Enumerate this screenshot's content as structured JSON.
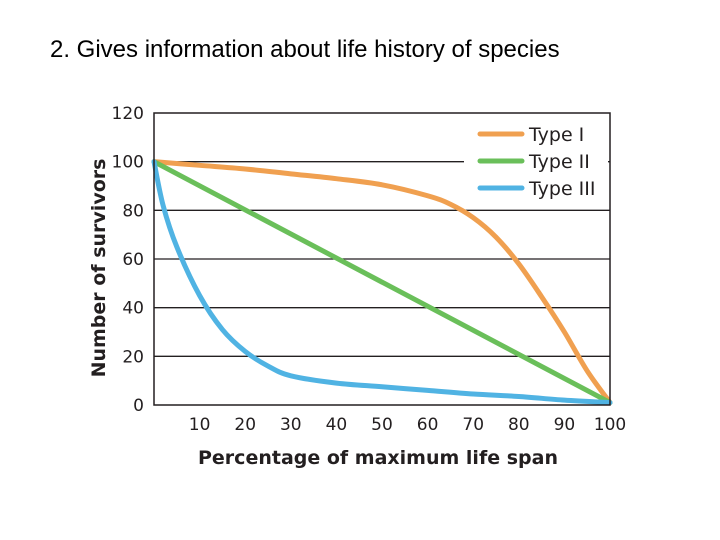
{
  "slide": {
    "title": "2. Gives information about life history of species"
  },
  "colors": {
    "type1": "#f0a050",
    "type2": "#6abf5a",
    "type3": "#50b3e3",
    "grid": "#231f20",
    "frame": "#231f20"
  },
  "chart_data": {
    "type": "line",
    "title": "",
    "xlabel": "Percentage of maximum life span",
    "ylabel": "Number of survivors",
    "xlim": [
      0,
      100
    ],
    "ylim": [
      0,
      120
    ],
    "xticks": [
      10,
      20,
      30,
      40,
      50,
      60,
      70,
      80,
      90,
      100
    ],
    "yticks": [
      0,
      20,
      40,
      60,
      80,
      100,
      120
    ],
    "grid": "horizontal",
    "legend_position": "top-right",
    "series": [
      {
        "name": "Type I",
        "color_key": "type1",
        "x": [
          0,
          10,
          20,
          30,
          40,
          50,
          60,
          65,
          70,
          75,
          80,
          85,
          90,
          95,
          100
        ],
        "y": [
          100,
          98.5,
          97,
          95,
          93,
          90.5,
          86,
          82.5,
          77,
          69,
          58,
          44.5,
          30,
          14,
          1
        ]
      },
      {
        "name": "Type II",
        "color_key": "type2",
        "x": [
          0,
          100
        ],
        "y": [
          100,
          1
        ]
      },
      {
        "name": "Type III",
        "color_key": "type3",
        "x": [
          0,
          2,
          5,
          10,
          15,
          20,
          25,
          30,
          40,
          50,
          60,
          70,
          80,
          90,
          100
        ],
        "y": [
          100,
          82,
          65,
          45,
          31,
          22,
          16,
          12,
          9,
          7.5,
          6,
          4.5,
          3.5,
          2,
          1
        ]
      }
    ]
  }
}
